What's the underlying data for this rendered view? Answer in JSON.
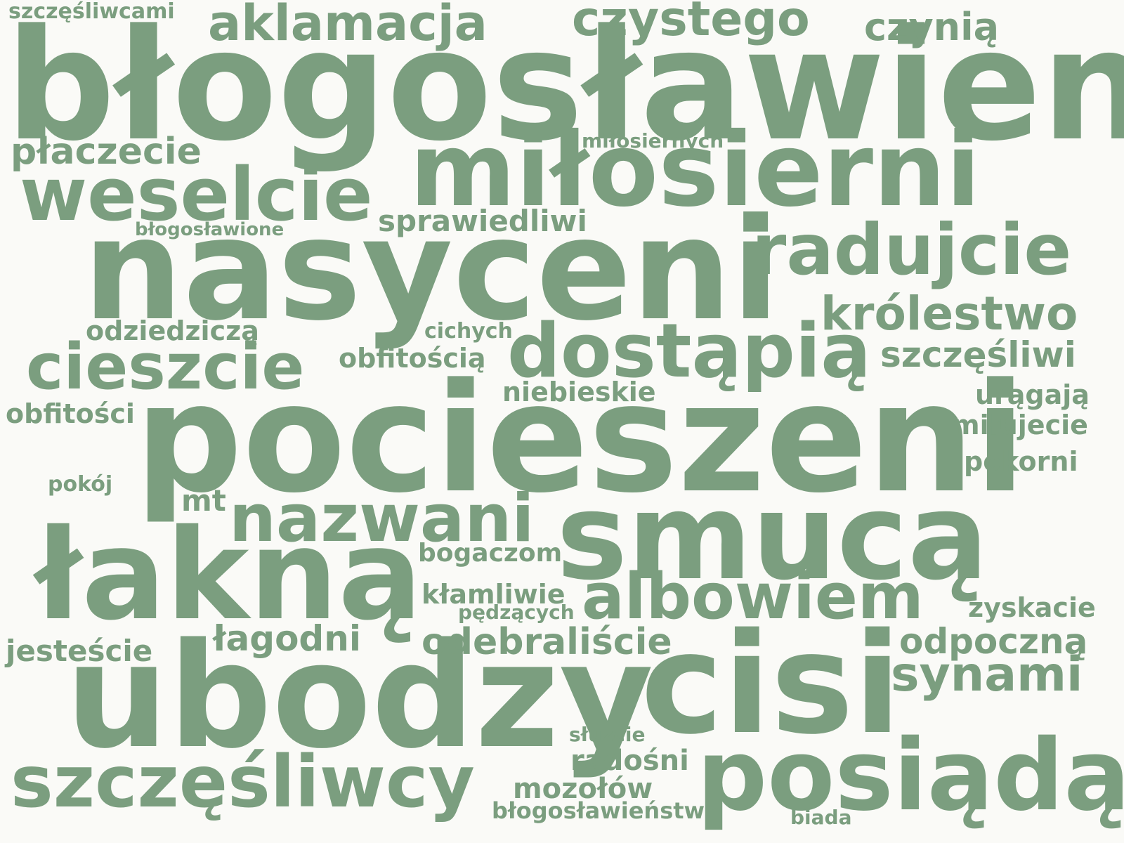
{
  "colors": {
    "background": "#fafaf7",
    "word": "#7b9e7f"
  },
  "words": [
    "błogosławieni",
    "nasyceni",
    "pocieszeni",
    "smucą",
    "łakną",
    "ubodzy",
    "cisi",
    "miłosierni",
    "posiądą",
    "dostąpią",
    "weselcie",
    "radujcie",
    "szczęśliwcy",
    "cieszcie",
    "nazwani",
    "albowiem",
    "aklamacja",
    "czystego",
    "królestwo",
    "synami",
    "czynią",
    "płaczecie",
    "sprawiedliwi",
    "szczęśliwi",
    "odebraliście",
    "odpoczną",
    "łagodni",
    "odziedziczą",
    "obfitością",
    "niebieskie",
    "jesteście",
    "obfitości",
    "radośni",
    "mozołów",
    "bogaczom",
    "kłamliwie",
    "zyskacie",
    "miłujecie",
    "pokorni",
    "urągają",
    "szczęśliwcami",
    "miłosiernych",
    "błogosławione",
    "cichych",
    "mt",
    "pokój",
    "pędzących",
    "służcie",
    "błogosławieństw",
    "biada"
  ]
}
